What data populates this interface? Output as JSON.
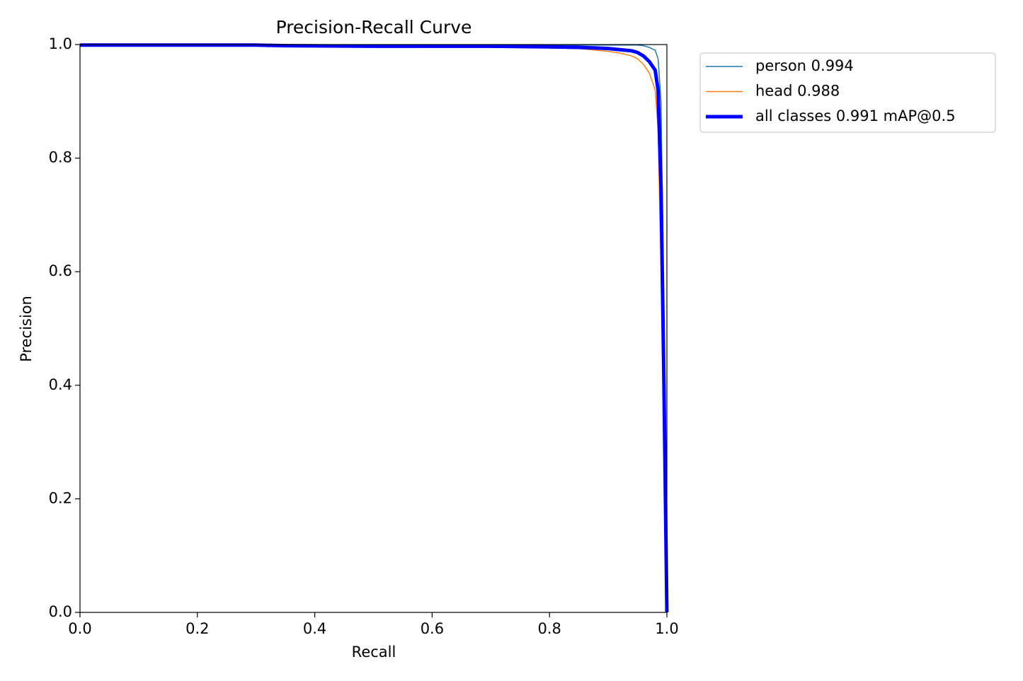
{
  "chart_data": {
    "type": "line",
    "title": "Precision-Recall Curve",
    "x_label": "Recall",
    "y_label": "Precision",
    "x": [
      0,
      0.1,
      0.2,
      0.3,
      0.35,
      0.5,
      0.6,
      0.7,
      0.8,
      0.85,
      0.88,
      0.9,
      0.92,
      0.94,
      0.95,
      0.96,
      0.97,
      0.98,
      0.985,
      0.99,
      0.995,
      1.0
    ],
    "series": [
      {
        "name": "person 0.994",
        "color": "#1f77b4",
        "width": 1.5,
        "values": [
          1.0,
          1.0,
          1.0,
          1.0,
          0.999,
          0.999,
          0.999,
          0.999,
          0.999,
          0.999,
          0.999,
          0.999,
          0.999,
          0.999,
          0.999,
          0.998,
          0.995,
          0.99,
          0.975,
          0.9,
          0.5,
          0.0
        ]
      },
      {
        "name": "head 0.988",
        "color": "#ff7f0e",
        "width": 1.5,
        "values": [
          0.998,
          0.998,
          0.998,
          0.998,
          0.996,
          0.996,
          0.995,
          0.995,
          0.994,
          0.993,
          0.99,
          0.988,
          0.985,
          0.98,
          0.975,
          0.965,
          0.95,
          0.92,
          0.85,
          0.6,
          0.3,
          0.0
        ]
      },
      {
        "name": "all classes 0.991 mAP@0.5",
        "color": "#0000ff",
        "width": 5,
        "values": [
          0.999,
          0.999,
          0.999,
          0.999,
          0.998,
          0.997,
          0.997,
          0.997,
          0.996,
          0.995,
          0.994,
          0.993,
          0.991,
          0.989,
          0.986,
          0.98,
          0.97,
          0.955,
          0.92,
          0.75,
          0.4,
          0.0
        ]
      }
    ],
    "xlim": [
      0,
      1
    ],
    "ylim": [
      0,
      1
    ],
    "xticks": [
      {
        "value": 0,
        "label": "0.0"
      },
      0.2,
      0.4,
      0.6,
      0.8,
      {
        "value": 1,
        "label": "1.0"
      }
    ],
    "yticks": [
      {
        "value": 0,
        "label": "0.0"
      },
      0.2,
      0.4,
      0.6,
      0.8,
      {
        "value": 1,
        "label": "1.0"
      }
    ],
    "legend": "outside-right"
  }
}
